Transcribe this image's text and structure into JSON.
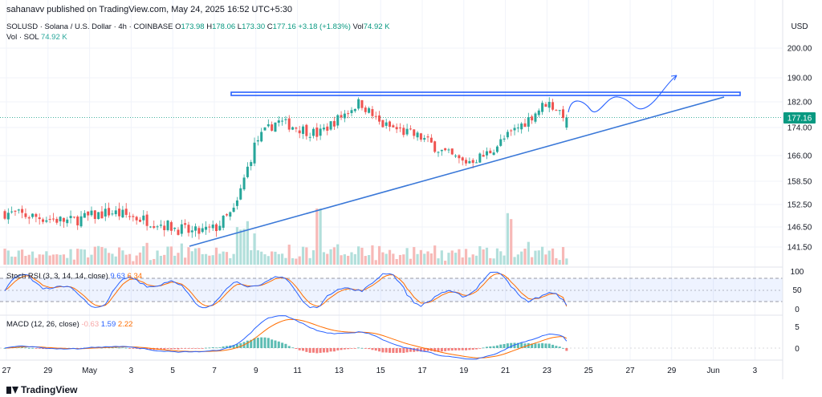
{
  "header": {
    "published": "sahanavv published on TradingView.com, May 24, 2025 16:52 UTC+5:30"
  },
  "symbol": {
    "title": "SOLUSD · Solana / U.S. Dollar · 4h · COINBASE",
    "o_label": "O",
    "o": "173.98",
    "h_label": "H",
    "h": "178.06",
    "l_label": "L",
    "l": "173.30",
    "c_label": "C",
    "c": "177.16",
    "change": "+3.18 (+1.83%)",
    "vol_label": "Vol",
    "vol": "74.92 K"
  },
  "volume": {
    "label": "Vol · SOL",
    "value": "74.92 K"
  },
  "stoch": {
    "label": "Stoch RSI (3, 3, 14, 14, close)",
    "k": "9.63",
    "d": "6.34"
  },
  "macd": {
    "label": "MACD (12, 26, close)",
    "hist": "-0.63",
    "macd": "1.59",
    "signal": "2.22"
  },
  "price_axis": {
    "currency": "USD",
    "current": "177.16"
  },
  "branding": {
    "logo_text": "TradingView"
  },
  "colors": {
    "up": "#26a69a",
    "down": "#ef5350",
    "trendline": "#2962ff",
    "k_line": "#2962ff",
    "d_line": "#ff6d00",
    "last_price": "#089981"
  },
  "chart_data": {
    "type": "candlestick",
    "symbol": "SOLUSD",
    "interval": "4h",
    "y_ticks": [
      200,
      190,
      182,
      174,
      166,
      158.5,
      152.5,
      146.5,
      141.5
    ],
    "x_ticks": [
      "27",
      "29",
      "May",
      "3",
      "5",
      "7",
      "9",
      "11",
      "13",
      "15",
      "17",
      "19",
      "21",
      "23",
      "25",
      "27",
      "29",
      "Jun",
      "3"
    ],
    "last_price": 177.16,
    "ohlc": {
      "open": 173.98,
      "high": 178.06,
      "low": 173.3,
      "close": 177.16
    },
    "close_path": [
      {
        "date": "2025-04-26",
        "close": 151
      },
      {
        "date": "2025-04-28",
        "close": 149.5
      },
      {
        "date": "2025-04-30",
        "close": 148
      },
      {
        "date": "2025-05-02",
        "close": 150.5
      },
      {
        "date": "2025-05-04",
        "close": 148
      },
      {
        "date": "2025-05-06",
        "close": 145
      },
      {
        "date": "2025-05-07",
        "close": 146
      },
      {
        "date": "2025-05-08",
        "close": 151
      },
      {
        "date": "2025-05-09",
        "close": 170
      },
      {
        "date": "2025-05-10",
        "close": 176
      },
      {
        "date": "2025-05-12",
        "close": 172
      },
      {
        "date": "2025-05-14",
        "close": 182
      },
      {
        "date": "2025-05-15",
        "close": 175
      },
      {
        "date": "2025-05-17",
        "close": 171
      },
      {
        "date": "2025-05-18",
        "close": 167
      },
      {
        "date": "2025-05-19",
        "close": 164
      },
      {
        "date": "2025-05-20",
        "close": 166
      },
      {
        "date": "2025-05-22",
        "close": 176
      },
      {
        "date": "2025-05-23",
        "close": 182
      },
      {
        "date": "2025-05-24",
        "close": 177.16
      }
    ],
    "resistance_zone": {
      "from": 182.8,
      "to": 184.0,
      "start": "2025-05-08",
      "end": "2025-06-01"
    },
    "trendline": {
      "start": {
        "date": "2025-05-06",
        "price": 143.8
      },
      "end": {
        "date": "2025-06-01",
        "price": 182.2
      }
    },
    "projection": "wave under resistance then breakout up",
    "stoch_rsi": {
      "k": 9.63,
      "d": 6.34,
      "levels": [
        80,
        50,
        20
      ],
      "y_ticks": [
        100,
        50,
        0
      ]
    },
    "macd": {
      "histogram": -0.63,
      "macd": 1.59,
      "signal": 2.22,
      "y_ticks": [
        5,
        0
      ]
    }
  }
}
